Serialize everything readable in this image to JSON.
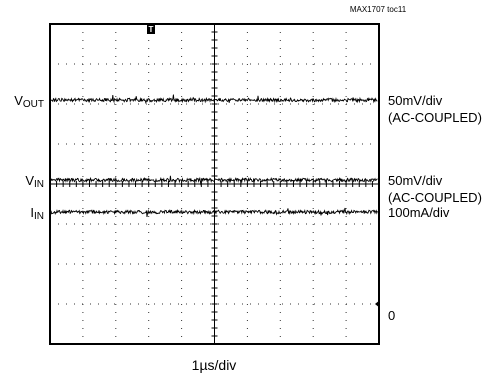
{
  "chart_data": {
    "type": "line",
    "figure_id": "MAX1707 toc11",
    "xlabel": "1µs/div",
    "xlim": [
      0,
      10
    ],
    "ylim": [
      0,
      8
    ],
    "grid": true,
    "trigger_marker": "T",
    "series": [
      {
        "name_main": "V",
        "name_sub": "OUT",
        "scale": "50mV/div",
        "coupling": "(AC-COUPLED)",
        "level_div": 6.1
      },
      {
        "name_main": "V",
        "name_sub": "IN",
        "scale": "50mV/div",
        "coupling": "(AC-COUPLED)",
        "level_div": 4.1
      },
      {
        "name_main": "I",
        "name_sub": "IN",
        "scale": "100mA/div",
        "coupling": "",
        "level_div": 3.3
      }
    ],
    "ground_label": "0",
    "ground_level_div": 1.0
  }
}
